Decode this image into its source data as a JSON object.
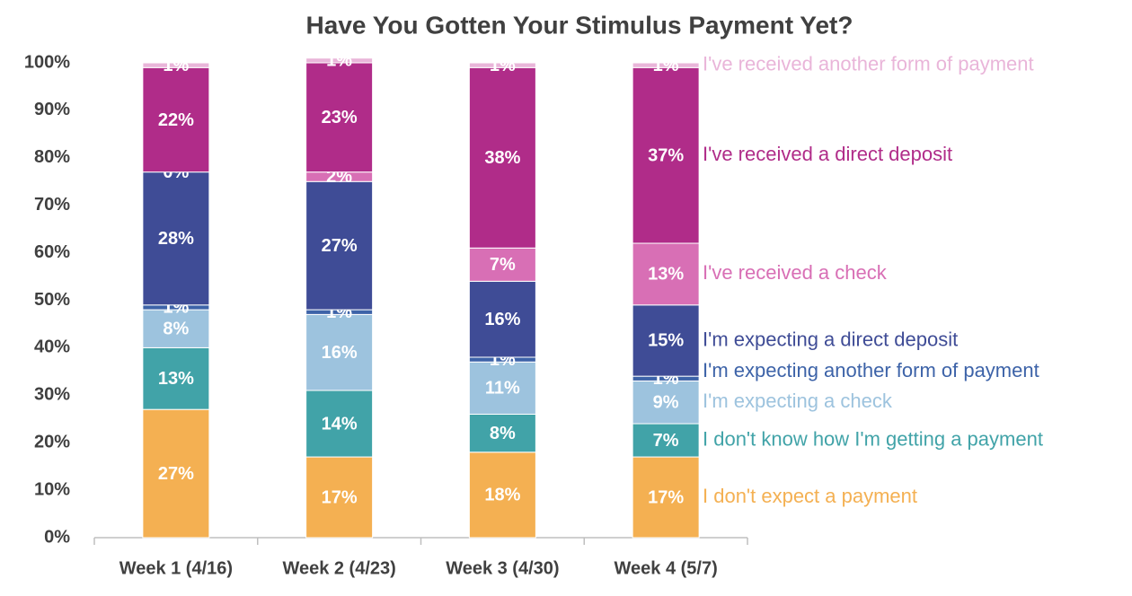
{
  "chart_data": {
    "type": "stacked_bar",
    "title": "Have You Gotten Your Stimulus Payment Yet?",
    "categories": [
      "Week 1 (4/16)",
      "Week 2 (4/23)",
      "Week 3 (4/30)",
      "Week 4 (5/7)"
    ],
    "ylim": [
      0,
      100
    ],
    "yticks": [
      {
        "value": 0,
        "label": "0%"
      },
      {
        "value": 10,
        "label": "10%"
      },
      {
        "value": 20,
        "label": "20%"
      },
      {
        "value": 30,
        "label": "30%"
      },
      {
        "value": 40,
        "label": "40%"
      },
      {
        "value": 50,
        "label": "50%"
      },
      {
        "value": 60,
        "label": "60%"
      },
      {
        "value": 70,
        "label": "70%"
      },
      {
        "value": 80,
        "label": "80%"
      },
      {
        "value": 90,
        "label": "90%"
      },
      {
        "value": 100,
        "label": "100%"
      }
    ],
    "series": [
      {
        "name": "I don't expect a payment",
        "color": "#f4b052",
        "values": [
          27,
          17,
          18,
          17
        ],
        "value_labels": [
          "27%",
          "17%",
          "18%",
          "17%"
        ]
      },
      {
        "name": "I don't know how I'm getting a payment",
        "color": "#41a3a8",
        "values": [
          13,
          14,
          8,
          7
        ],
        "value_labels": [
          "13%",
          "14%",
          "8%",
          "7%"
        ]
      },
      {
        "name": "I'm expecting a check",
        "color": "#9dc3de",
        "values": [
          8,
          16,
          11,
          9
        ],
        "value_labels": [
          "8%",
          "16%",
          "11%",
          "9%"
        ]
      },
      {
        "name": "I'm expecting another form of payment",
        "color": "#3d63a8",
        "values": [
          1,
          1,
          1,
          1
        ],
        "value_labels": [
          "1%",
          "1%",
          "1%",
          "1%"
        ]
      },
      {
        "name": "I'm expecting a direct deposit",
        "color": "#3f4c96",
        "values": [
          28,
          27,
          16,
          15
        ],
        "value_labels": [
          "28%",
          "27%",
          "16%",
          "15%"
        ]
      },
      {
        "name": "I've received a check",
        "color": "#d86fb5",
        "values": [
          0,
          2,
          7,
          13
        ],
        "value_labels": [
          "0%",
          "2%",
          "7%",
          "13%"
        ]
      },
      {
        "name": "I've received a direct deposit",
        "color": "#b02c89",
        "values": [
          22,
          23,
          38,
          37
        ],
        "value_labels": [
          "22%",
          "23%",
          "38%",
          "37%"
        ]
      },
      {
        "name": "I've received another form of payment",
        "color": "#e9b5d9",
        "values": [
          1,
          1,
          1,
          1
        ],
        "value_labels": [
          "1%",
          "1%",
          "1%",
          "1%"
        ]
      }
    ]
  }
}
